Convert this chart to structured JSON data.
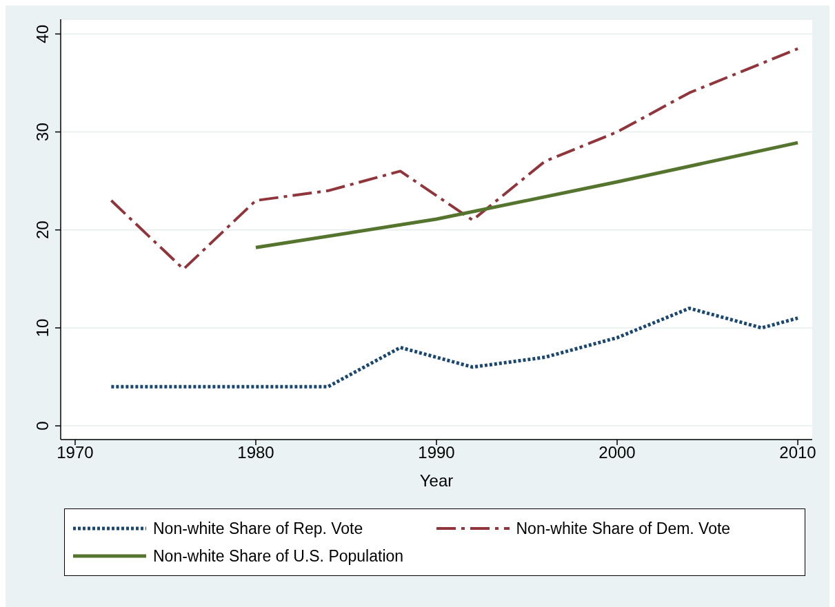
{
  "chart_data": {
    "type": "line",
    "xlabel": "Year",
    "xlim": [
      1969.2,
      2010.8
    ],
    "xticks": [
      1970,
      1980,
      1990,
      2000,
      2010
    ],
    "ylim": [
      -1.4,
      41.5
    ],
    "yticks": [
      0,
      10,
      20,
      30,
      40
    ],
    "grid": "y",
    "legend": "bottom",
    "series": [
      {
        "name": "Non-white Share of Rep. Vote",
        "color": "#1a476f",
        "line_style": "dotted",
        "x": [
          1972,
          1976,
          1980,
          1984,
          1988,
          1992,
          1996,
          2000,
          2004,
          2008,
          2010
        ],
        "values": [
          4,
          4,
          4,
          4,
          8,
          6,
          7,
          9,
          12,
          10,
          11
        ]
      },
      {
        "name": "Non-white Share of Dem. Vote",
        "color": "#90353b",
        "line_style": "dashdot",
        "x": [
          1972,
          1976,
          1980,
          1984,
          1988,
          1992,
          1996,
          2000,
          2004,
          2008,
          2010
        ],
        "values": [
          23,
          16,
          23,
          24,
          26,
          21,
          27,
          30,
          34,
          37,
          38.5
        ]
      },
      {
        "name": "Non-white Share of U.S. Population",
        "color": "#55752f",
        "line_style": "solid",
        "x": [
          1980,
          1990,
          2000,
          2010
        ],
        "values": [
          18.2,
          21.1,
          24.9,
          28.9
        ]
      }
    ]
  }
}
